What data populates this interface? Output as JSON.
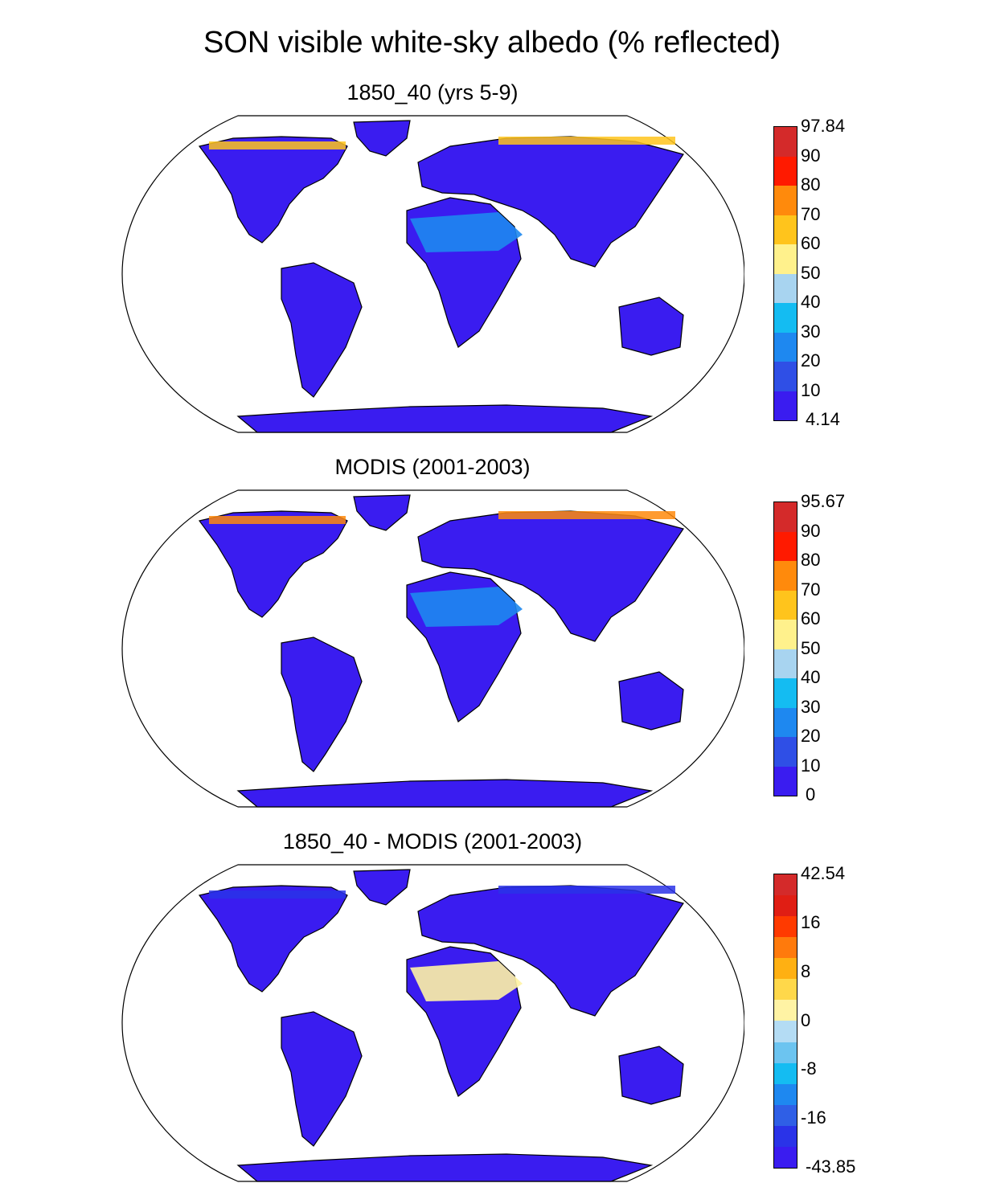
{
  "title": "SON visible white-sky albedo (% reflected)",
  "colors": {
    "abs_scale": [
      "#3a1cf0",
      "#2f4fe6",
      "#1e88f0",
      "#14bcf2",
      "#a8d4f0",
      "#fff18c",
      "#ffc41c",
      "#ff8a0c",
      "#ff1a00",
      "#d42a2a"
    ],
    "diff_scale": [
      "#3a1cf0",
      "#2a33e8",
      "#2f5fe6",
      "#1e88f0",
      "#14bcf2",
      "#6cc4f0",
      "#b4dcf4",
      "#fff3a4",
      "#ffd84a",
      "#ffb012",
      "#ff7a0c",
      "#ff3a00",
      "#e01e14",
      "#d42a2a"
    ],
    "panels": {
      "p1": {
        "land": "#2f4fe6",
        "tropics": "#3a1cf0",
        "desert": "#1e88f0",
        "ice": "#d42a2a",
        "arctic": "#ffc41c"
      },
      "p2": {
        "land": "#3a1cf0",
        "tropics": "#3a1cf0",
        "desert": "#1e88f0",
        "ice": "#e01e14",
        "arctic": "#ff8a0c"
      },
      "p3": {
        "land": "#fff3a4",
        "tropics": "#ffd84a",
        "desert": "#fff3a4",
        "ice": "#ffb012",
        "arctic": "#2a33e8"
      }
    }
  },
  "panels": [
    {
      "id": "p1",
      "title": "1850_40 (yrs 5-9)",
      "colorbar_labels": [
        "97.84",
        "90",
        "80",
        "70",
        "60",
        "50",
        "40",
        "30",
        "20",
        "10",
        "4.14"
      ]
    },
    {
      "id": "p2",
      "title": "MODIS (2001-2003)",
      "colorbar_labels": [
        "95.67",
        "90",
        "80",
        "70",
        "60",
        "50",
        "40",
        "30",
        "20",
        "10",
        "0"
      ]
    },
    {
      "id": "p3",
      "title": "1850_40 - MODIS (2001-2003)",
      "colorbar_labels": [
        "42.54",
        "16",
        "8",
        "0",
        "-8",
        "-16",
        "-43.85"
      ]
    }
  ]
}
